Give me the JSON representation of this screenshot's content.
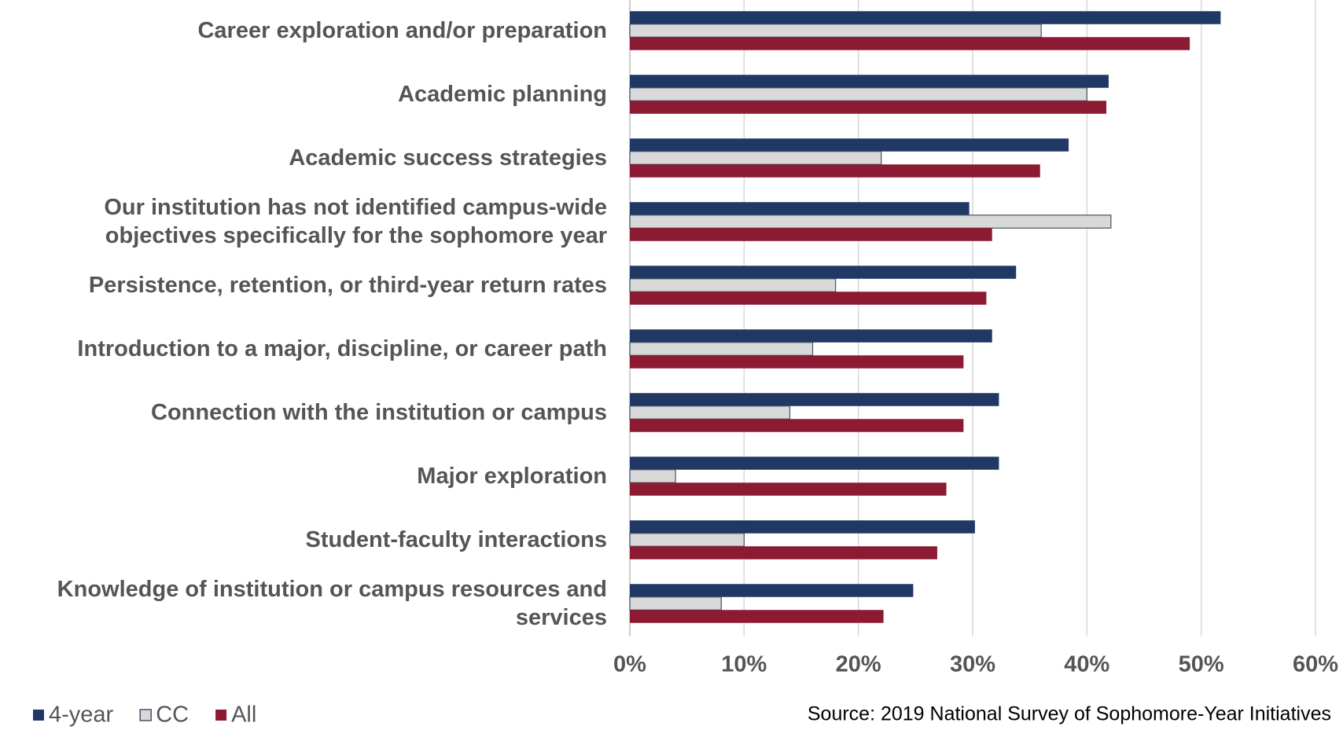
{
  "chart_data": {
    "type": "bar",
    "orientation": "horizontal",
    "categories": [
      "Career exploration and/or preparation",
      "Academic planning",
      "Academic success strategies",
      "Our institution has not identified campus-wide\nobjectives specifically for the sophomore year",
      "Persistence, retention, or third-year return rates",
      "Introduction to a major, discipline, or career path",
      "Connection with the institution or campus",
      "Major exploration",
      "Student-faculty interactions",
      "Knowledge of institution or campus resources and\nservices"
    ],
    "series": [
      {
        "name": "4-year",
        "color": "#1f3864",
        "values": [
          51.7,
          41.9,
          38.4,
          29.7,
          33.8,
          31.7,
          32.3,
          32.3,
          30.2,
          24.8
        ]
      },
      {
        "name": "CC",
        "color": "#d9d9d9",
        "values": [
          36,
          40,
          22,
          42.1,
          18,
          16,
          14,
          4,
          10,
          8
        ]
      },
      {
        "name": "All",
        "color": "#8b1a32",
        "values": [
          49,
          41.7,
          35.9,
          31.7,
          31.2,
          29.2,
          29.2,
          27.7,
          26.9,
          22.2
        ]
      }
    ],
    "xlim": [
      0,
      60
    ],
    "xticks": [
      {
        "value": 0,
        "label": "0%"
      },
      {
        "value": 10,
        "label": "10%"
      },
      {
        "value": 20,
        "label": "20%"
      },
      {
        "value": 30,
        "label": "30%"
      },
      {
        "value": 40,
        "label": "40%"
      },
      {
        "value": 50,
        "label": "50%"
      },
      {
        "value": 60,
        "label": "60%"
      }
    ],
    "grid": true,
    "legend": "bottom-left",
    "source": "Source: 2019 National Survey of Sophomore-Year Initiatives"
  }
}
